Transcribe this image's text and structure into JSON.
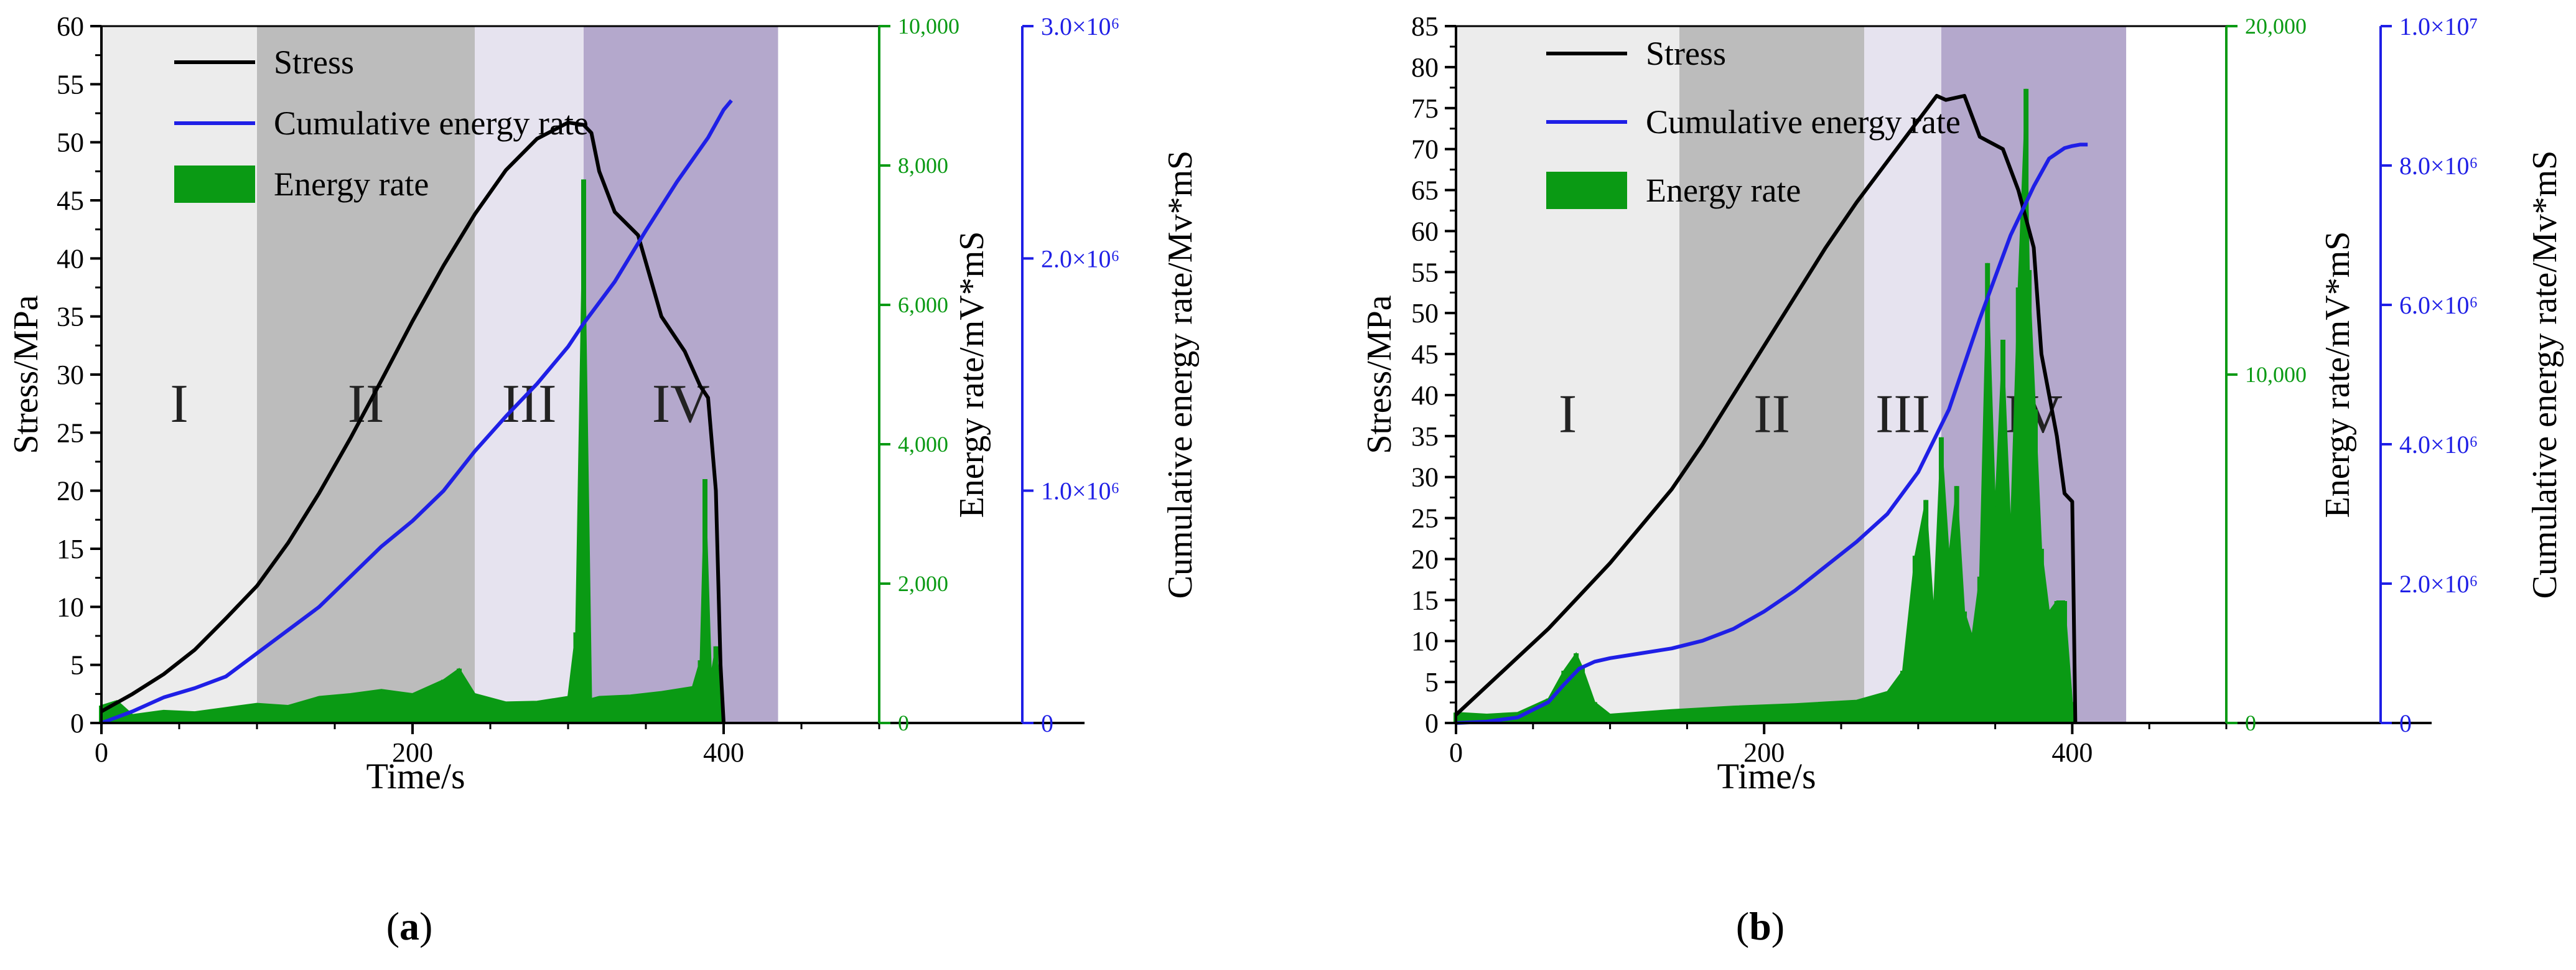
{
  "colors": {
    "stress": "#000000",
    "cumulative": "#1f1fe6",
    "energy": "#0a9a14",
    "stage1": "#ececec",
    "stage2": "#bcbcbc",
    "stage3": "#e6e3ef",
    "stage4": "#b4a8cc"
  },
  "chart_data": [
    {
      "type": "line",
      "panel_label": "(a)",
      "xlabel": "Time/s",
      "ylabel_left": "Stress/MPa",
      "ylabel_energy": "Energy rate/mV*mS",
      "ylabel_cumulative": "Cumulative energy rate/Mv*mS",
      "xlim": [
        0,
        500
      ],
      "x_ticks": [
        "0",
        "200",
        "400"
      ],
      "x_tick_values": [
        0,
        200,
        400
      ],
      "stress_ylim": [
        0,
        60
      ],
      "stress_ticks": [
        "0",
        "5",
        "10",
        "15",
        "20",
        "25",
        "30",
        "35",
        "40",
        "45",
        "50",
        "55",
        "60"
      ],
      "stress_tick_values": [
        0,
        5,
        10,
        15,
        20,
        25,
        30,
        35,
        40,
        45,
        50,
        55,
        60
      ],
      "energy_ylim": [
        0,
        10000
      ],
      "energy_ticks": [
        "0",
        "2,000",
        "4,000",
        "6,000",
        "8,000",
        "10,000"
      ],
      "energy_tick_values": [
        0,
        2000,
        4000,
        6000,
        8000,
        10000
      ],
      "cumulative_ylim": [
        0,
        3000000
      ],
      "cumulative_ticks": [
        "0",
        "1.0×10⁶",
        "2.0×10⁶",
        "3.0×10⁶"
      ],
      "cumulative_tick_values": [
        0,
        1000000,
        2000000,
        3000000
      ],
      "stages": [
        {
          "label": "I",
          "x0": 0,
          "x1": 100,
          "color": "#ececec"
        },
        {
          "label": "II",
          "x0": 100,
          "x1": 240,
          "color": "#bcbcbc"
        },
        {
          "label": "III",
          "x0": 240,
          "x1": 310,
          "color": "#e6e3ef"
        },
        {
          "label": "IV",
          "x0": 310,
          "x1": 435,
          "color": "#b4a8cc"
        }
      ],
      "stage_label_y": 27,
      "legend": [
        "Stress",
        "Cumulative energy rate",
        "Energy rate"
      ],
      "series": [
        {
          "name": "Stress",
          "axis": "stress",
          "x": [
            0,
            20,
            40,
            60,
            80,
            100,
            120,
            140,
            160,
            180,
            200,
            220,
            240,
            260,
            280,
            300,
            310,
            315,
            320,
            330,
            345,
            360,
            375,
            385,
            390,
            395,
            398,
            400
          ],
          "y": [
            1.0,
            2.5,
            4.2,
            6.3,
            9.0,
            11.8,
            15.5,
            19.8,
            24.5,
            29.5,
            34.6,
            39.4,
            43.8,
            47.6,
            50.3,
            51.7,
            51.5,
            50.8,
            47.5,
            44,
            42,
            35,
            32,
            29,
            28,
            20,
            5,
            0
          ]
        },
        {
          "name": "Cumulative energy rate",
          "axis": "cumulative",
          "x": [
            0,
            20,
            40,
            60,
            80,
            100,
            120,
            140,
            160,
            180,
            200,
            220,
            240,
            260,
            280,
            300,
            310,
            330,
            350,
            370,
            390,
            400,
            405
          ],
          "y": [
            0,
            50000,
            110000,
            150000,
            200000,
            300000,
            400000,
            500000,
            630000,
            760000,
            870000,
            1000000,
            1170000,
            1320000,
            1460000,
            1620000,
            1720000,
            1900000,
            2120000,
            2330000,
            2520000,
            2640000,
            2680000
          ]
        },
        {
          "name": "Energy rate",
          "axis": "energy",
          "x": [
            0,
            10,
            20,
            40,
            60,
            80,
            100,
            120,
            140,
            160,
            180,
            200,
            220,
            230,
            240,
            260,
            280,
            300,
            305,
            310,
            315,
            320,
            340,
            360,
            380,
            385,
            388,
            392,
            395,
            398,
            400
          ],
          "y": [
            250,
            320,
            120,
            180,
            160,
            220,
            280,
            250,
            380,
            420,
            480,
            420,
            620,
            780,
            420,
            300,
            310,
            380,
            1300,
            7800,
            350,
            380,
            400,
            450,
            520,
            900,
            3500,
            700,
            1100,
            500,
            0
          ]
        }
      ]
    },
    {
      "type": "line",
      "panel_label": "(b)",
      "xlabel": "Time/s",
      "ylabel_left": "Stress/MPa",
      "ylabel_energy": "Energy rate/mV*mS",
      "ylabel_cumulative": "Cumulative energy rate/Mv*mS",
      "xlim": [
        0,
        500
      ],
      "x_ticks": [
        "0",
        "200",
        "400"
      ],
      "x_tick_values": [
        0,
        200,
        400
      ],
      "stress_ylim": [
        0,
        85
      ],
      "stress_ticks": [
        "0",
        "5",
        "10",
        "15",
        "20",
        "25",
        "30",
        "35",
        "40",
        "45",
        "50",
        "55",
        "60",
        "65",
        "70",
        "75",
        "80",
        "85"
      ],
      "stress_tick_values": [
        0,
        5,
        10,
        15,
        20,
        25,
        30,
        35,
        40,
        45,
        50,
        55,
        60,
        65,
        70,
        75,
        80,
        85
      ],
      "energy_ylim": [
        0,
        20000
      ],
      "energy_ticks": [
        "0",
        "10,000",
        "20,000"
      ],
      "energy_tick_values": [
        0,
        10000,
        20000
      ],
      "cumulative_ylim": [
        0,
        10000000
      ],
      "cumulative_ticks": [
        "0",
        "2.0×10⁶",
        "4.0×10⁶",
        "6.0×10⁶",
        "8.0×10⁶",
        "1.0×10⁷"
      ],
      "cumulative_tick_values": [
        0,
        2000000,
        4000000,
        6000000,
        8000000,
        10000000
      ],
      "stages": [
        {
          "label": "I",
          "x0": 0,
          "x1": 145,
          "color": "#ececec"
        },
        {
          "label": "II",
          "x0": 145,
          "x1": 265,
          "color": "#bcbcbc"
        },
        {
          "label": "III",
          "x0": 265,
          "x1": 315,
          "color": "#e6e3ef"
        },
        {
          "label": "IV",
          "x0": 315,
          "x1": 435,
          "color": "#b4a8cc"
        }
      ],
      "stage_label_y": 37,
      "legend": [
        "Stress",
        "Cumulative energy rate",
        "Energy rate"
      ],
      "series": [
        {
          "name": "Stress",
          "axis": "stress",
          "x": [
            0,
            20,
            40,
            60,
            80,
            100,
            120,
            140,
            160,
            180,
            200,
            220,
            240,
            260,
            280,
            300,
            312,
            318,
            330,
            340,
            345,
            355,
            365,
            375,
            380,
            390,
            395,
            400,
            402
          ],
          "y": [
            1.0,
            4.5,
            8.0,
            11.5,
            15.5,
            19.5,
            24.0,
            28.5,
            34.0,
            40.0,
            46.0,
            52.0,
            58.0,
            63.5,
            68.5,
            73.5,
            76.5,
            76.0,
            76.5,
            71.5,
            71.0,
            70.0,
            65.0,
            58.0,
            45.0,
            35.0,
            28.0,
            27.0,
            0
          ]
        },
        {
          "name": "Cumulative energy rate",
          "axis": "cumulative",
          "x": [
            0,
            20,
            40,
            60,
            70,
            80,
            90,
            100,
            120,
            140,
            160,
            180,
            200,
            220,
            240,
            260,
            280,
            300,
            320,
            340,
            360,
            375,
            385,
            395,
            400,
            405,
            410
          ],
          "y": [
            0,
            20000,
            80000,
            300000,
            550000,
            780000,
            880000,
            930000,
            1000000,
            1070000,
            1180000,
            1350000,
            1600000,
            1900000,
            2250000,
            2600000,
            3000000,
            3600000,
            4500000,
            5800000,
            7000000,
            7700000,
            8100000,
            8250000,
            8280000,
            8300000,
            8300000
          ]
        },
        {
          "name": "Energy rate",
          "axis": "energy",
          "x": [
            0,
            20,
            40,
            60,
            70,
            78,
            82,
            90,
            100,
            140,
            180,
            220,
            260,
            280,
            290,
            298,
            305,
            310,
            315,
            320,
            325,
            330,
            335,
            340,
            345,
            350,
            355,
            360,
            365,
            370,
            372,
            376,
            380,
            385,
            390,
            395,
            400,
            402
          ],
          "y": [
            300,
            250,
            300,
            700,
            1500,
            2000,
            1600,
            600,
            250,
            380,
            480,
            550,
            650,
            900,
            1500,
            4800,
            6400,
            3200,
            8200,
            4800,
            6800,
            3200,
            2500,
            4200,
            13200,
            6200,
            11000,
            5500,
            12500,
            18200,
            13000,
            9000,
            5000,
            3200,
            3500,
            3500,
            600,
            0
          ]
        }
      ]
    }
  ]
}
